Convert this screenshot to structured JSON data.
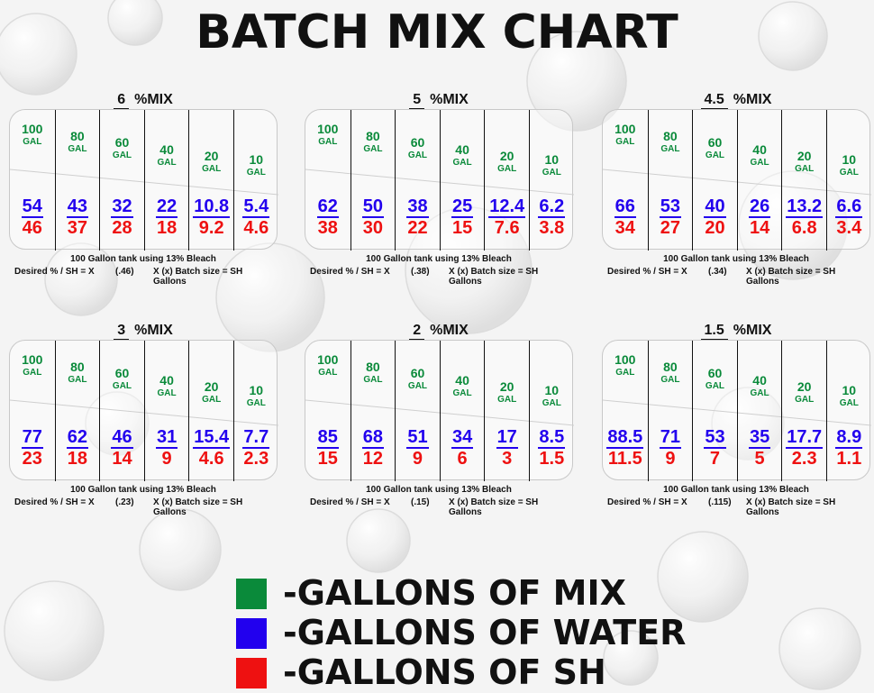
{
  "title": "BATCH MIX CHART",
  "colors": {
    "mix": "#0a8a3a",
    "water": "#2200ee",
    "sh": "#ee1111"
  },
  "table_unit": "GAL",
  "mix_sizes": [
    "100",
    "80",
    "60",
    "40",
    "20",
    "10"
  ],
  "panels": [
    {
      "pct": "6",
      "suffix": "%MIX",
      "water": [
        "54",
        "43",
        "32",
        "22",
        "10.8",
        "5.4"
      ],
      "sh": [
        "46",
        "37",
        "28",
        "18",
        "9.2",
        "4.6"
      ],
      "note1": "100 Gallon tank using 13% Bleach",
      "formula1": "Desired % / SH = X",
      "ratio": "(.46)",
      "formula2": "X (x) Batch size = SH Gallons"
    },
    {
      "pct": "5",
      "suffix": "%MIX",
      "water": [
        "62",
        "50",
        "38",
        "25",
        "12.4",
        "6.2"
      ],
      "sh": [
        "38",
        "30",
        "22",
        "15",
        "7.6",
        "3.8"
      ],
      "note1": "100 Gallon tank using 13% Bleach",
      "formula1": "Desired % / SH = X",
      "ratio": "(.38)",
      "formula2": "X (x) Batch size = SH Gallons"
    },
    {
      "pct": "4.5",
      "suffix": "%MIX",
      "water": [
        "66",
        "53",
        "40",
        "26",
        "13.2",
        "6.6"
      ],
      "sh": [
        "34",
        "27",
        "20",
        "14",
        "6.8",
        "3.4"
      ],
      "note1": "100 Gallon tank using 13% Bleach",
      "formula1": "Desired % / SH = X",
      "ratio": "(.34)",
      "formula2": "X (x) Batch size = SH Gallons"
    },
    {
      "pct": "3",
      "suffix": "%MIX",
      "water": [
        "77",
        "62",
        "46",
        "31",
        "15.4",
        "7.7"
      ],
      "sh": [
        "23",
        "18",
        "14",
        "9",
        "4.6",
        "2.3"
      ],
      "note1": "100 Gallon tank using 13% Bleach",
      "formula1": "Desired % / SH = X",
      "ratio": "(.23)",
      "formula2": "X (x) Batch size = SH Gallons"
    },
    {
      "pct": "2",
      "suffix": "%MIX",
      "water": [
        "85",
        "68",
        "51",
        "34",
        "17",
        "8.5"
      ],
      "sh": [
        "15",
        "12",
        "9",
        "6",
        "3",
        "1.5"
      ],
      "note1": "100 Gallon tank using 13% Bleach",
      "formula1": "Desired % / SH = X",
      "ratio": "(.15)",
      "formula2": "X (x) Batch size = SH Gallons"
    },
    {
      "pct": "1.5",
      "suffix": "%MIX",
      "water": [
        "88.5",
        "71",
        "53",
        "35",
        "17.7",
        "8.9"
      ],
      "sh": [
        "11.5",
        "9",
        "7",
        "5",
        "2.3",
        "1.1"
      ],
      "note1": "100 Gallon tank using 13% Bleach",
      "formula1": "Desired % / SH = X",
      "ratio": "(.115)",
      "formula2": "X (x) Batch size = SH Gallons"
    }
  ],
  "legend": [
    {
      "label": "-GALLONS OF MIX",
      "color": "#0a8a3a"
    },
    {
      "label": "-GALLONS OF WATER",
      "color": "#2200ee"
    },
    {
      "label": "-GALLONS OF SH",
      "color": "#ee1111"
    }
  ],
  "chart_data": {
    "type": "table",
    "title": "BATCH MIX CHART",
    "categories": [
      "100",
      "80",
      "60",
      "40",
      "20",
      "10"
    ],
    "series": [
      {
        "name": "6 %MIX",
        "water": [
          54,
          43,
          32,
          22,
          10.8,
          5.4
        ],
        "sh": [
          46,
          37,
          28,
          18,
          9.2,
          4.6
        ],
        "ratio": "(.46)"
      },
      {
        "name": "5 %MIX",
        "water": [
          62,
          50,
          38,
          25,
          12.4,
          6.2
        ],
        "sh": [
          38,
          30,
          22,
          15,
          7.6,
          3.8
        ],
        "ratio": "(.38)"
      },
      {
        "name": "4.5 %MIX",
        "water": [
          66,
          53,
          40,
          26,
          13.2,
          6.6
        ],
        "sh": [
          34,
          27,
          20,
          14,
          6.8,
          3.4
        ],
        "ratio": "(.34)"
      },
      {
        "name": "3 %MIX",
        "water": [
          77,
          62,
          46,
          31,
          15.4,
          7.7
        ],
        "sh": [
          23,
          18,
          14,
          9,
          4.6,
          2.3
        ],
        "ratio": "(.23)"
      },
      {
        "name": "2 %MIX",
        "water": [
          85,
          68,
          51,
          34,
          17,
          8.5
        ],
        "sh": [
          15,
          12,
          9,
          6,
          3,
          1.5
        ],
        "ratio": "(.15)"
      },
      {
        "name": "1.5 %MIX",
        "water": [
          88.5,
          71,
          53,
          35,
          17.7,
          8.9
        ],
        "sh": [
          11.5,
          9,
          7,
          5,
          2.3,
          1.1
        ],
        "ratio": "(.115)"
      }
    ],
    "legend": [
      "-GALLONS OF MIX",
      "-GALLONS OF WATER",
      "-GALLONS OF SH"
    ]
  }
}
